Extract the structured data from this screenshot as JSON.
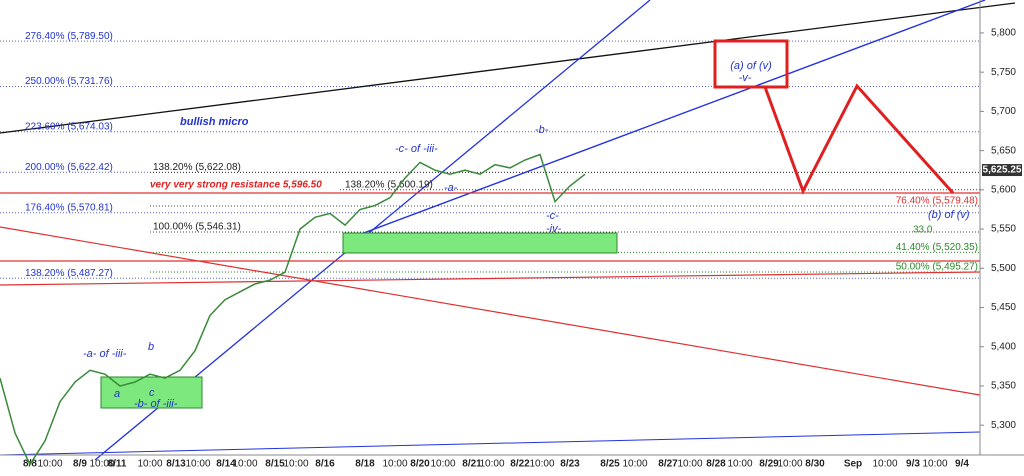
{
  "chart_data": {
    "type": "line",
    "x_labels": [
      "8/8",
      "10:00",
      "8/9",
      "10:00",
      "8/11",
      "10:00",
      "8/13",
      "10:00",
      "8/14",
      "10:00",
      "8/15",
      "10:00",
      "8/16",
      "8/18",
      "10:00",
      "8/20",
      "10:00",
      "8/21",
      "10:00",
      "8/22",
      "10:00",
      "8/23",
      "8/25",
      "10:00",
      "8/27",
      "10:00",
      "8/28",
      "10:00",
      "8/29",
      "10:00",
      "8/30",
      "Sep",
      "10:00",
      "9/3",
      "10:00",
      "9/4"
    ],
    "values": [
      5360,
      5290,
      5250,
      5280,
      5330,
      5355,
      5370,
      5365,
      5350,
      5355,
      5365,
      5360,
      5370,
      5395,
      5440,
      5460,
      5470,
      5480,
      5485,
      5495,
      5550,
      5565,
      5570,
      5555,
      5575,
      5580,
      5590,
      5615,
      5635,
      5625,
      5620,
      5625,
      5620,
      5632,
      5628,
      5638,
      5645,
      5585,
      5605,
      5620
    ],
    "color": "#3a8a3a",
    "ylim": [
      5262,
      5842
    ],
    "yticks": [
      {
        "value": 5300,
        "label": "5,300"
      },
      {
        "value": 5350,
        "label": "5,350"
      },
      {
        "value": 5400,
        "label": "5,400"
      },
      {
        "value": 5450,
        "label": "5,450"
      },
      {
        "value": 5500,
        "label": "5,500"
      },
      {
        "value": 5550,
        "label": "5,550"
      },
      {
        "value": 5600,
        "label": "5,600"
      },
      {
        "value": 5650,
        "label": "5,650"
      },
      {
        "value": 5700,
        "label": "5,700"
      },
      {
        "value": 5750,
        "label": "5,750"
      },
      {
        "value": 5800,
        "label": "5,800"
      }
    ],
    "last_price": {
      "value": 5625.25,
      "label": "5,625.25"
    },
    "levels": [
      {
        "label": "276.40% (5,789.50)",
        "value": 5789.5
      },
      {
        "label": "250.00% (5,731.76)",
        "value": 5731.76
      },
      {
        "label": "223.60% (5,674.03)",
        "value": 5674.03
      },
      {
        "label": "200.00% (5,622.42)",
        "value": 5622.42
      },
      {
        "label": "176.40% (5,570.81)",
        "value": 5570.81
      },
      {
        "label": "138.20% (5,487.27)",
        "value": 5487.27
      },
      {
        "label": "138.20% (5,622.08)",
        "value": 5622.08
      },
      {
        "label": "100.00% (5,546.31)",
        "value": 5546.31
      },
      {
        "label": "138.20% (5,600.19)",
        "value": 5600.19
      },
      {
        "label": "76.40% (5,579.48)",
        "value": 5579.48
      },
      {
        "label": "41.40% (5,520.35)",
        "value": 5520.35
      },
      {
        "label": "50.00% (5,495.27)",
        "value": 5495.27
      }
    ],
    "annotations": [
      "bullish micro",
      "very very strong resistance 5,596.50",
      "-c- of -iii-",
      "-b-",
      "-a-",
      "-c-",
      "-iv-",
      "(a) of (v)",
      "-v-",
      "(b) of (v)",
      "-a- of -iii-",
      "b",
      "a",
      "c",
      "-b- of -iii-",
      "33.0"
    ]
  }
}
